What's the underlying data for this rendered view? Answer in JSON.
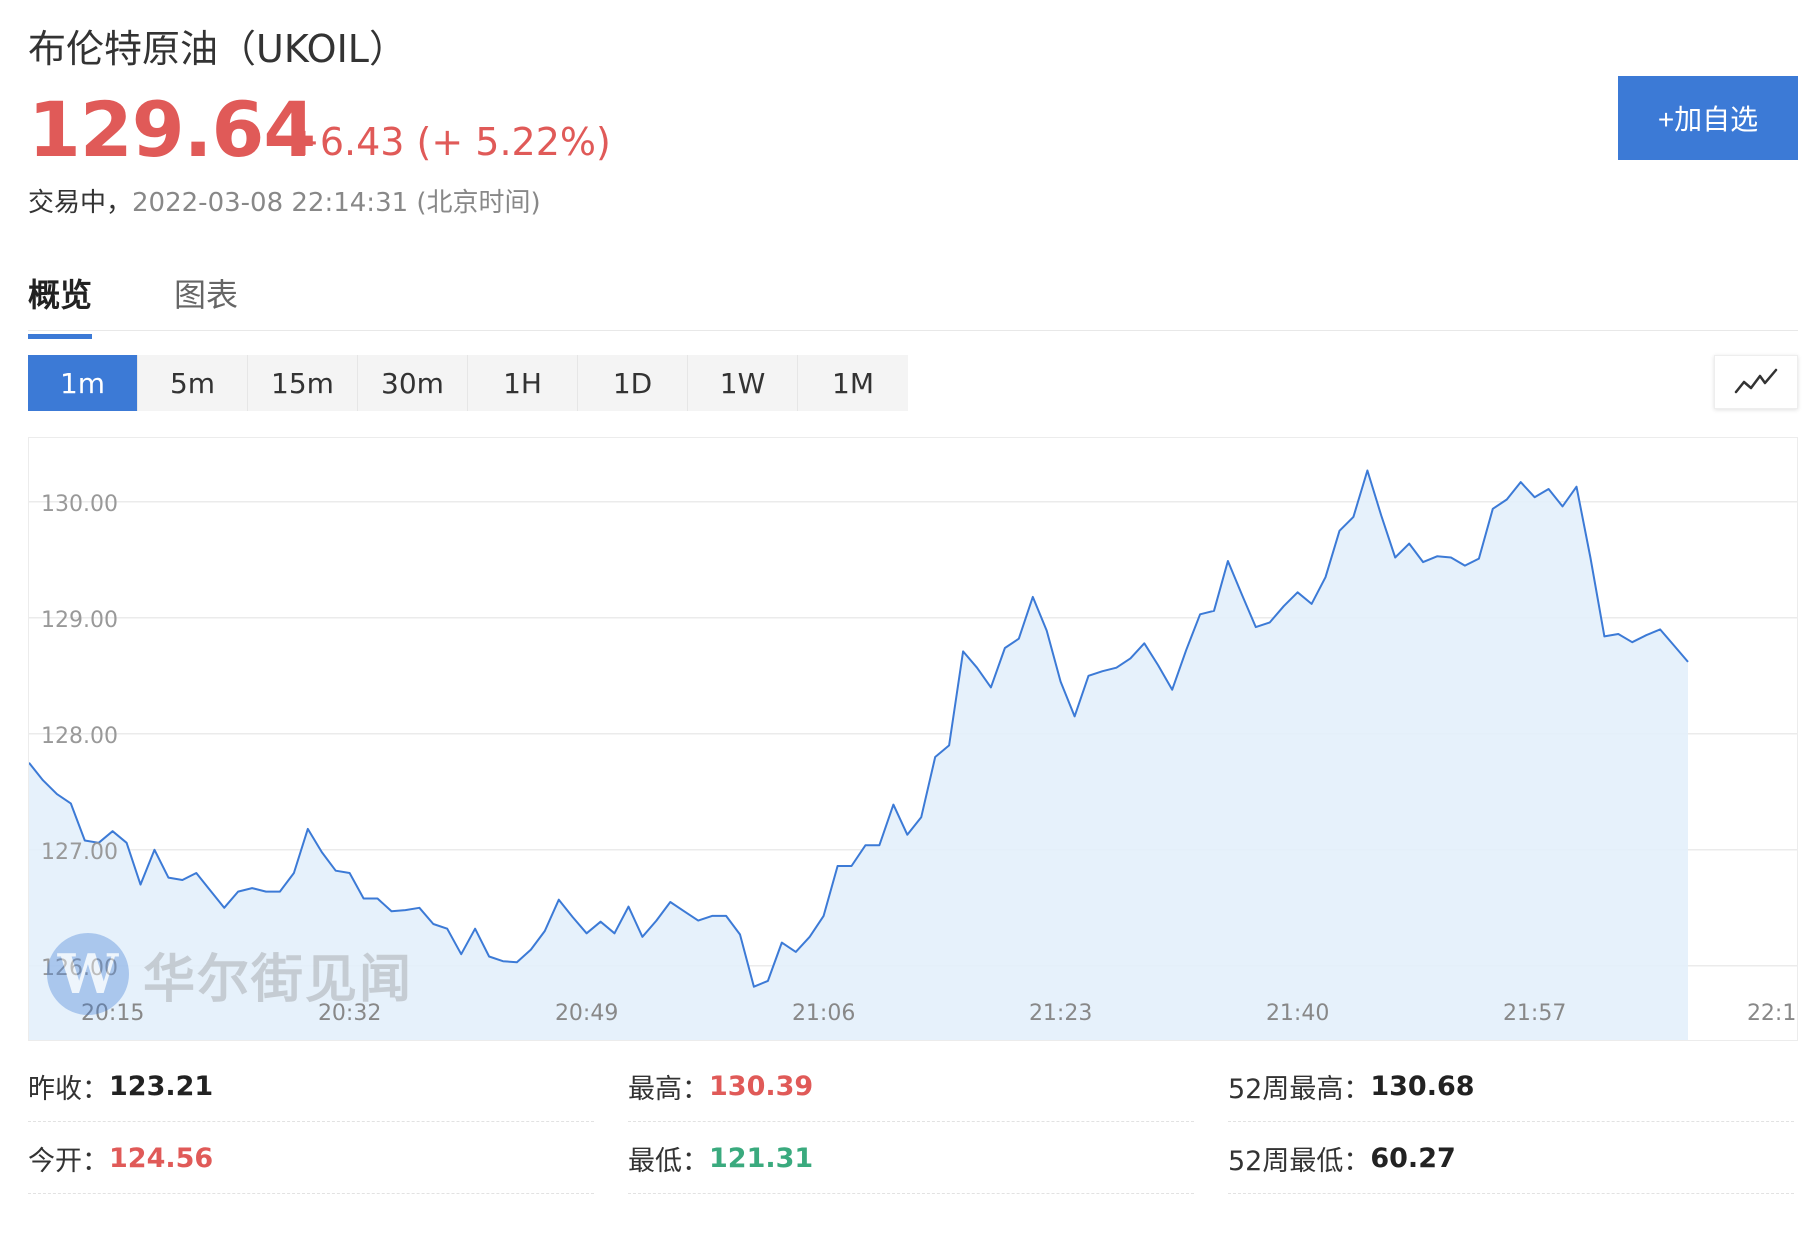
{
  "header": {
    "title": "布伦特原油（UKOIL）",
    "price": "129.64",
    "change": "+6.43 (+ 5.22%)",
    "status": "交易中，",
    "timestamp": "2022-03-08 22:14:31 (北京时间)",
    "add_button": "+加自选"
  },
  "tabs": [
    {
      "label": "概览",
      "active": true
    },
    {
      "label": "图表",
      "active": false
    }
  ],
  "intervals": [
    {
      "label": "1m",
      "active": true
    },
    {
      "label": "5m",
      "active": false
    },
    {
      "label": "15m",
      "active": false
    },
    {
      "label": "30m",
      "active": false
    },
    {
      "label": "1H",
      "active": false
    },
    {
      "label": "1D",
      "active": false
    },
    {
      "label": "1W",
      "active": false
    },
    {
      "label": "1M",
      "active": false
    }
  ],
  "chart_type_icon": "line-chart-icon",
  "watermark": {
    "text": "华尔街见闻",
    "logo_letter": "W"
  },
  "colors": {
    "accent": "#3c7ad6",
    "up": "#e05a58",
    "down": "#3aaa7e",
    "line": "#3c7ad6",
    "fill": "#e3effb"
  },
  "chart_data": {
    "type": "area",
    "title": "",
    "xlabel": "",
    "ylabel": "",
    "ylim": [
      125.55,
      130.55
    ],
    "xlim": [
      0,
      119
    ],
    "y_ticks": [
      {
        "value": 130,
        "label": "130.00"
      },
      {
        "value": 129,
        "label": "129.00"
      },
      {
        "value": 128,
        "label": "128.00"
      },
      {
        "value": 127,
        "label": "127.00"
      },
      {
        "value": 126,
        "label": "126.00"
      }
    ],
    "x_ticks": [
      {
        "value": 6,
        "label": "20:15"
      },
      {
        "value": 23,
        "label": "20:32"
      },
      {
        "value": 40,
        "label": "20:49"
      },
      {
        "value": 57,
        "label": "21:06"
      },
      {
        "value": 74,
        "label": "21:23"
      },
      {
        "value": 91,
        "label": "21:40"
      },
      {
        "value": 108,
        "label": "21:57"
      },
      {
        "value": 125,
        "label": "22:1"
      }
    ],
    "grid": true,
    "series": [
      {
        "values": [
          127.75,
          127.6,
          127.48,
          127.4,
          127.08,
          127.06,
          127.16,
          127.06,
          126.7,
          127.0,
          126.76,
          126.74,
          126.8,
          126.65,
          126.5,
          126.64,
          126.67,
          126.64,
          126.64,
          126.8,
          127.18,
          126.98,
          126.82,
          126.8,
          126.58,
          126.58,
          126.47,
          126.48,
          126.5,
          126.36,
          126.32,
          126.1,
          126.32,
          126.08,
          126.04,
          126.03,
          126.14,
          126.3,
          126.57,
          126.42,
          126.28,
          126.38,
          126.28,
          126.51,
          126.25,
          126.39,
          126.55,
          126.47,
          126.39,
          126.43,
          126.43,
          126.27,
          125.82,
          125.87,
          126.2,
          126.12,
          126.25,
          126.43,
          126.86,
          126.86,
          127.04,
          127.04,
          127.39,
          127.13,
          127.28,
          127.8,
          127.9,
          128.71,
          128.57,
          128.4,
          128.74,
          128.82,
          129.18,
          128.89,
          128.45,
          128.15,
          128.5,
          128.54,
          128.57,
          128.65,
          128.78,
          128.59,
          128.38,
          128.72,
          129.03,
          129.06,
          129.49,
          129.2,
          128.92,
          128.96,
          129.1,
          129.22,
          129.12,
          129.35,
          129.75,
          129.87,
          130.27,
          129.88,
          129.52,
          129.64,
          129.48,
          129.53,
          129.52,
          129.45,
          129.51,
          129.94,
          130.02,
          130.17,
          130.04,
          130.11,
          129.96,
          130.13,
          129.52,
          128.84,
          128.86,
          128.79,
          128.85,
          128.9,
          128.76,
          128.62
        ]
      }
    ]
  },
  "stats": [
    {
      "label": "昨收：",
      "value": "123.21",
      "tone": "neutral"
    },
    {
      "label": "最高：",
      "value": "130.39",
      "tone": "red"
    },
    {
      "label": "52周最高：",
      "value": "130.68",
      "tone": "neutral"
    },
    {
      "label": "今开：",
      "value": "124.56",
      "tone": "red"
    },
    {
      "label": "最低：",
      "value": "121.31",
      "tone": "green"
    },
    {
      "label": "52周最低：",
      "value": "60.27",
      "tone": "neutral"
    }
  ]
}
